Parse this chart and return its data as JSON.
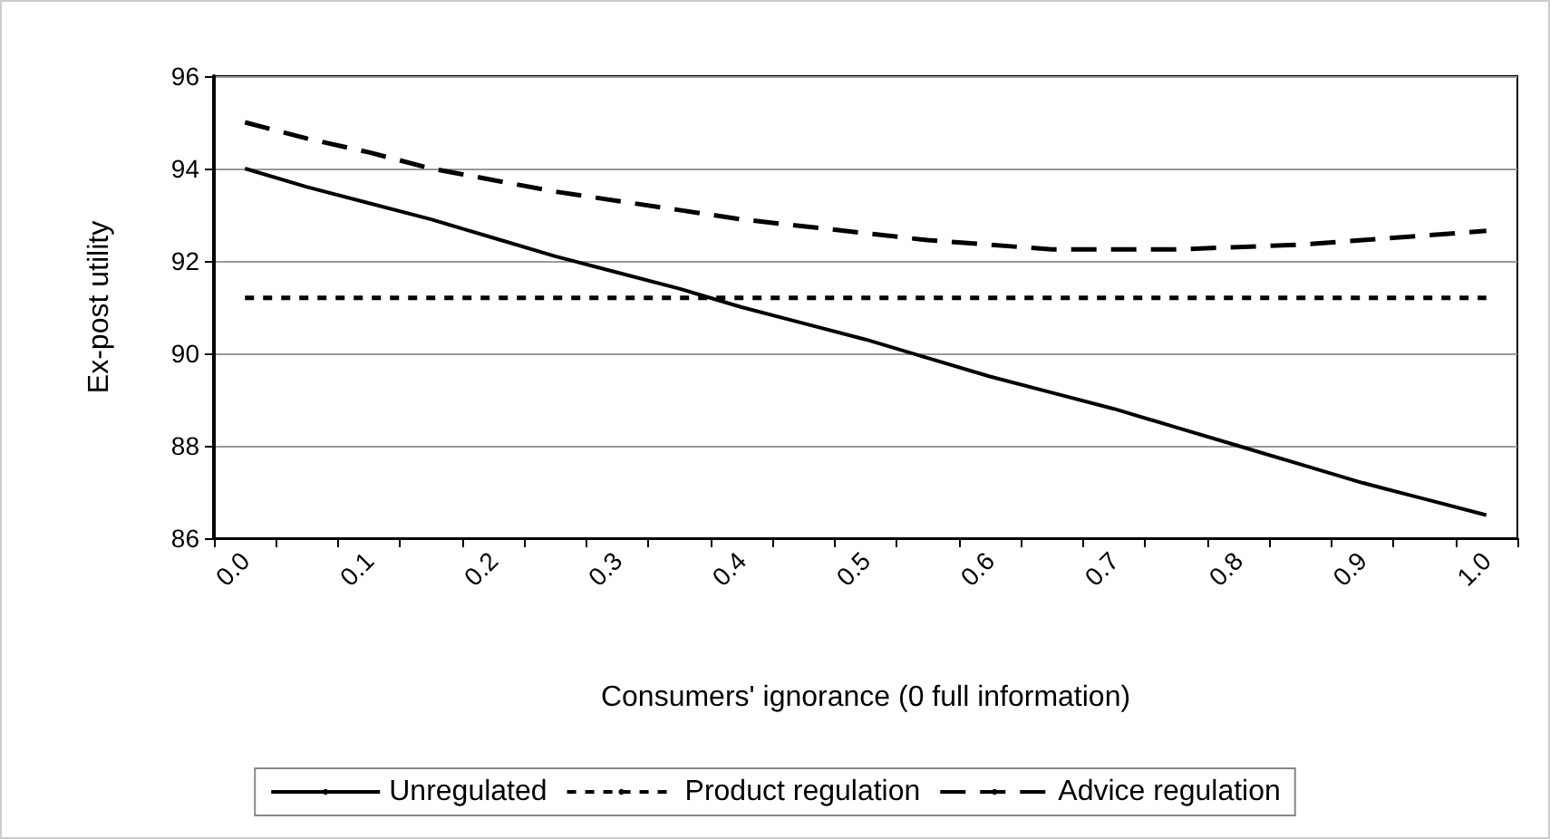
{
  "chart_data": {
    "type": "line",
    "xlabel": "Consumers' ignorance (0 full information)",
    "ylabel": "Ex-post utility",
    "categories": [
      "0.0",
      null,
      "0.1",
      null,
      "0.2",
      null,
      "0.3",
      null,
      "0.4",
      null,
      "0.5",
      null,
      "0.6",
      null,
      "0.7",
      null,
      "0.8",
      null,
      "0.9",
      null,
      "1.0"
    ],
    "series": [
      {
        "name": "Unregulated",
        "color": "#000000",
        "line_style": "solid",
        "values": [
          94.0,
          93.6,
          93.25,
          92.9,
          92.5,
          92.1,
          91.75,
          91.4,
          91.0,
          90.65,
          90.3,
          89.9,
          89.5,
          89.15,
          88.8,
          88.4,
          88.0,
          87.6,
          87.2,
          86.85,
          86.5
        ]
      },
      {
        "name": "Product regulation",
        "color": "#000000",
        "line_style": "dotted",
        "values": [
          91.2,
          91.2,
          91.2,
          91.2,
          91.2,
          91.2,
          91.2,
          91.2,
          91.2,
          91.2,
          91.2,
          91.2,
          91.2,
          91.2,
          91.2,
          91.2,
          91.2,
          91.2,
          91.2,
          91.2,
          91.2
        ]
      },
      {
        "name": "Advice regulation",
        "color": "#000000",
        "line_style": "dashed",
        "values": [
          95.0,
          94.65,
          94.35,
          94.0,
          93.75,
          93.5,
          93.3,
          93.1,
          92.9,
          92.75,
          92.6,
          92.45,
          92.35,
          92.25,
          92.25,
          92.25,
          92.3,
          92.35,
          92.45,
          92.55,
          92.65
        ]
      }
    ],
    "ylim": [
      86,
      96
    ],
    "yticks": [
      86,
      88,
      90,
      92,
      94,
      96
    ],
    "grid": "y",
    "legend": "bottom",
    "marker": "none"
  }
}
